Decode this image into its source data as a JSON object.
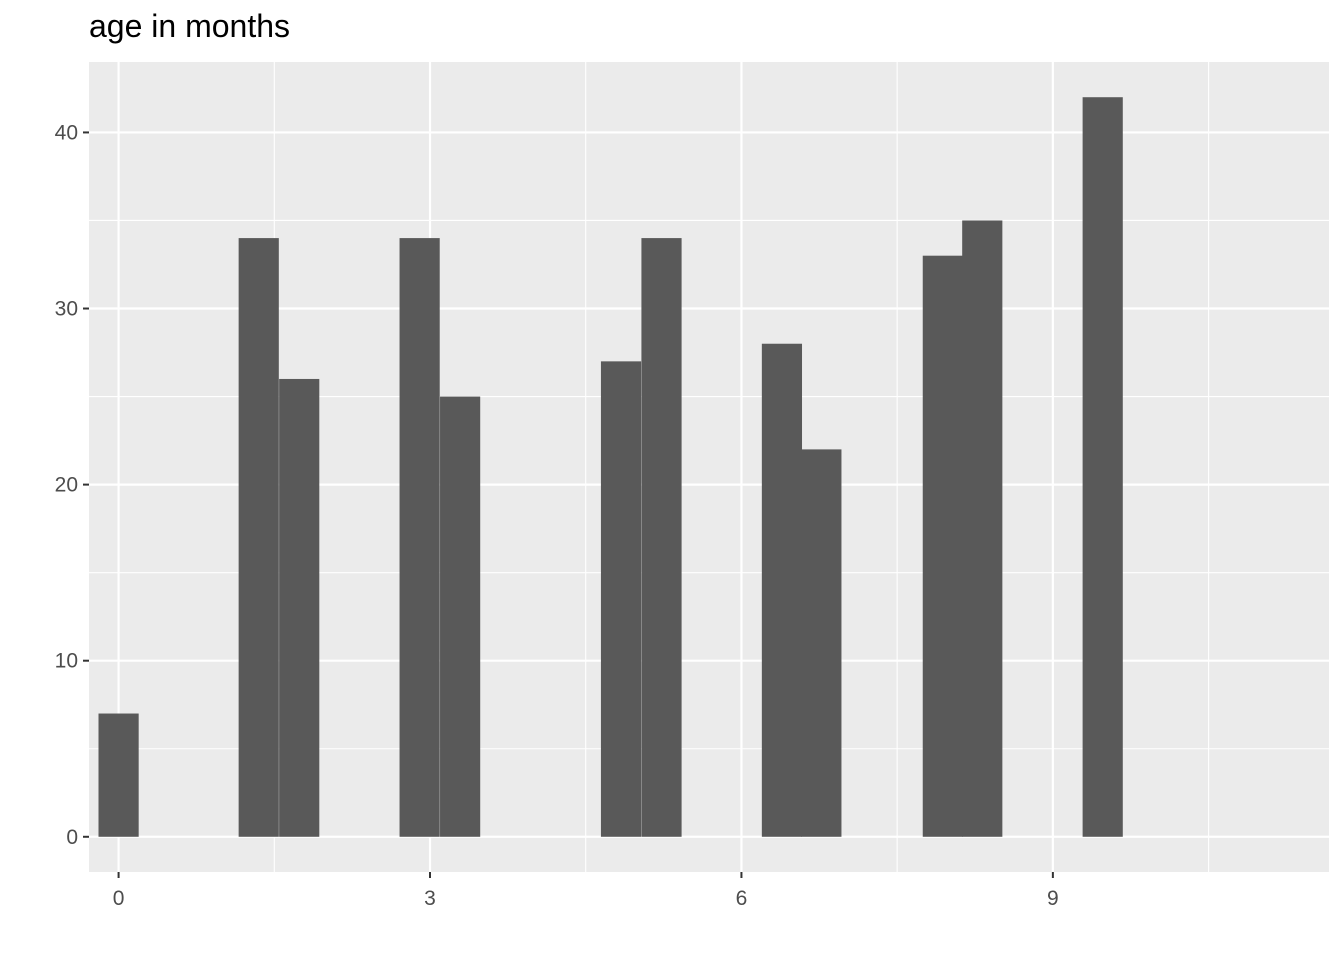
{
  "chart_data": {
    "type": "bar",
    "title": "age in months",
    "xlabel": "",
    "ylabel": "",
    "x": [
      0,
      1,
      2,
      3,
      4,
      5,
      6,
      7,
      8,
      9,
      10,
      11
    ],
    "bins": [
      {
        "x": 0.0,
        "value": 7
      },
      {
        "x": 1.35,
        "value": 34
      },
      {
        "x": 1.74,
        "value": 26
      },
      {
        "x": 2.9,
        "value": 34
      },
      {
        "x": 3.29,
        "value": 25
      },
      {
        "x": 4.84,
        "value": 27
      },
      {
        "x": 5.23,
        "value": 34
      },
      {
        "x": 6.39,
        "value": 28
      },
      {
        "x": 6.77,
        "value": 22
      },
      {
        "x": 7.94,
        "value": 33
      },
      {
        "x": 8.32,
        "value": 35
      },
      {
        "x": 9.48,
        "value": 42
      }
    ],
    "bin_width": 0.387,
    "xlim": [
      -0.285,
      11.66
    ],
    "ylim": [
      -2.0,
      44.0
    ],
    "x_ticks": [
      0,
      3,
      6,
      9
    ],
    "x_tick_labels": [
      "0",
      "3",
      "6",
      "9"
    ],
    "y_ticks": [
      0,
      10,
      20,
      30,
      40
    ],
    "y_tick_labels": [
      "0",
      "10",
      "20",
      "30",
      "40"
    ],
    "grid": true,
    "colors": {
      "panel": "#ebebeb",
      "grid": "#ffffff",
      "bar": "#595959",
      "tick_label": "#4d4d4d",
      "tick": "#333333"
    }
  }
}
